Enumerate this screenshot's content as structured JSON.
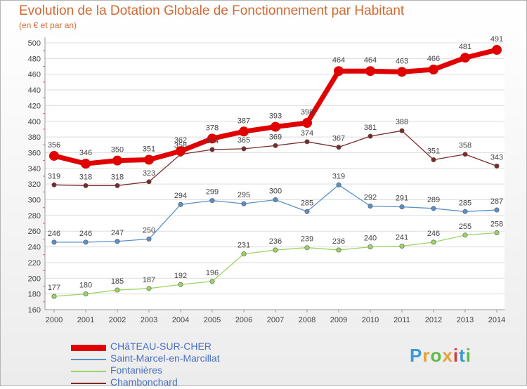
{
  "header": {
    "title": "Evolution de la Dotation Globale de Fonctionnement par Habitant",
    "subtitle": "(en € et par an)"
  },
  "logo": {
    "text": "Proxiti",
    "colors": [
      "#3a9ad9",
      "#e8a23a",
      "#5dbb46",
      "#e8a23a",
      "#d43c3c",
      "#3a9ad9",
      "#5dbb46"
    ]
  },
  "chart_data": {
    "type": "line",
    "x": [
      2000,
      2001,
      2002,
      2003,
      2004,
      2005,
      2006,
      2007,
      2008,
      2009,
      2010,
      2011,
      2012,
      2013,
      2014
    ],
    "ylim": [
      160,
      500
    ],
    "yticks": [
      160,
      180,
      200,
      220,
      240,
      260,
      280,
      300,
      320,
      340,
      360,
      380,
      400,
      420,
      440,
      460,
      480,
      500
    ],
    "grid": true,
    "legend": "bottom-left",
    "series": [
      {
        "name": "CHâTEAU-SUR-CHER",
        "color": "#e10000",
        "emphasis": true,
        "values": [
          356,
          346,
          350,
          351,
          362,
          378,
          387,
          393,
          398,
          464,
          464,
          463,
          466,
          481,
          491
        ]
      },
      {
        "name": "Saint-Marcel-en-Marcillat",
        "color": "#5b8fc7",
        "values": [
          246,
          246,
          247,
          250,
          294,
          299,
          295,
          300,
          285,
          319,
          292,
          291,
          289,
          285,
          287
        ]
      },
      {
        "name": "Fontanières",
        "color": "#9cd466",
        "values": [
          177,
          180,
          185,
          187,
          192,
          196,
          231,
          236,
          239,
          236,
          240,
          241,
          246,
          255,
          258
        ]
      },
      {
        "name": "Chambonchard",
        "color": "#7a2a2a",
        "values": [
          319,
          318,
          318,
          323,
          358,
          364,
          365,
          369,
          374,
          367,
          381,
          388,
          351,
          358,
          343
        ]
      }
    ]
  }
}
